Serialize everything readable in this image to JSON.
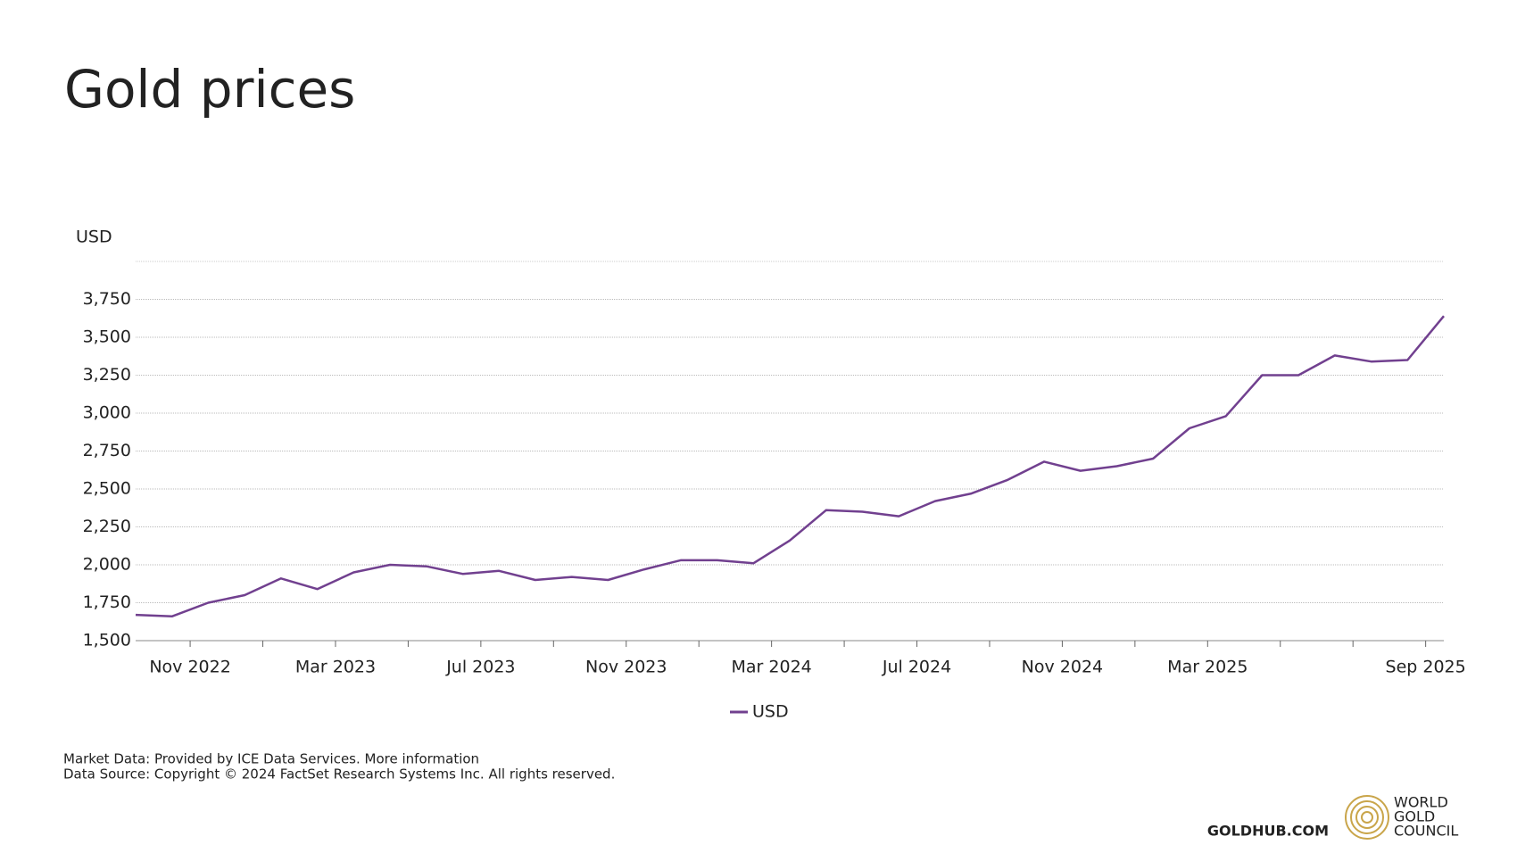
{
  "chart_data": {
    "type": "line",
    "title": "Gold prices",
    "y_label": "USD",
    "x": [
      "Sep 2022",
      "Oct 2022",
      "Nov 2022",
      "Dec 2022",
      "Jan 2023",
      "Feb 2023",
      "Mar 2023",
      "Apr 2023",
      "May 2023",
      "Jun 2023",
      "Jul 2023",
      "Aug 2023",
      "Sep 2023",
      "Oct 2023",
      "Nov 2023",
      "Dec 2023",
      "Jan 2024",
      "Feb 2024",
      "Mar 2024",
      "Apr 2024",
      "May 2024",
      "Jun 2024",
      "Jul 2024",
      "Aug 2024",
      "Sep 2024",
      "Oct 2024",
      "Nov 2024",
      "Dec 2024",
      "Jan 2025",
      "Feb 2025",
      "Mar 2025",
      "Apr 2025",
      "May 2025",
      "Jun 2025",
      "Jul 2025",
      "Aug 2025",
      "Sep 2025"
    ],
    "series": [
      {
        "name": "USD",
        "color": "#71408f",
        "values": [
          1670,
          1660,
          1750,
          1800,
          1910,
          1840,
          1950,
          2000,
          1990,
          1940,
          1960,
          1900,
          1920,
          1900,
          1970,
          2030,
          2030,
          2010,
          2160,
          2360,
          2350,
          2320,
          2420,
          2470,
          2560,
          2680,
          2620,
          2650,
          2700,
          2900,
          2980,
          3250,
          3250,
          3380,
          3340,
          3350,
          3640
        ]
      }
    ],
    "ylim": [
      1500,
      4000
    ],
    "yticks": [
      {
        "value": 1500,
        "label": "1,500"
      },
      {
        "value": 1750,
        "label": "1,750"
      },
      {
        "value": 2000,
        "label": "2,000"
      },
      {
        "value": 2250,
        "label": "2,250"
      },
      {
        "value": 2500,
        "label": "2,500"
      },
      {
        "value": 2750,
        "label": "2,750"
      },
      {
        "value": 3000,
        "label": "3,000"
      },
      {
        "value": 3250,
        "label": "3,250"
      },
      {
        "value": 3500,
        "label": "3,500"
      },
      {
        "value": 3750,
        "label": "3,750"
      }
    ],
    "xticks": [
      "Nov 2022",
      null,
      "Mar 2023",
      null,
      "Jul 2023",
      null,
      "Nov 2023",
      null,
      "Mar 2024",
      null,
      "Jul 2024",
      null,
      "Nov 2024",
      null,
      "Mar 2025",
      null,
      null,
      "Sep 2025"
    ],
    "grid": true,
    "legend": "bottom"
  },
  "notes": [
    "Market Data: Provided by ICE Data Services. More information",
    "Data Source: Copyright © 2024 FactSet Research Systems Inc. All rights reserved."
  ],
  "site": "GOLDHUB.COM",
  "brand": [
    "WORLD",
    "GOLD",
    "COUNCIL"
  ]
}
